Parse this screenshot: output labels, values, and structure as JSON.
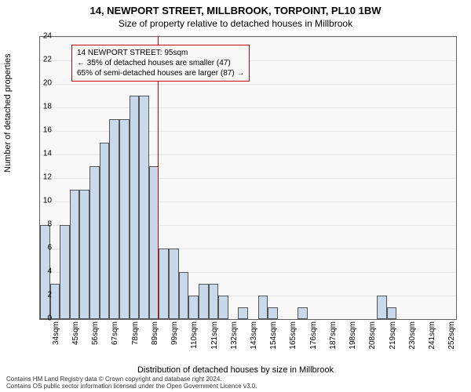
{
  "title_main": "14, NEWPORT STREET, MILLBROOK, TORPOINT, PL10 1BW",
  "title_sub": "Size of property relative to detached houses in Millbrook",
  "ylabel": "Number of detached properties",
  "xlabel": "Distribution of detached houses by size in Millbrook",
  "footer_line1": "Contains HM Land Registry data © Crown copyright and database right 2024.",
  "footer_line2": "Contains OS public sector information licensed under the Open Government Licence v3.0.",
  "callout": {
    "line1": "14 NEWPORT STREET: 95sqm",
    "line2": "← 35% of detached houses are smaller (47)",
    "line3": "65% of semi-detached houses are larger (87) →"
  },
  "chart": {
    "type": "histogram",
    "bar_fill": "#c9d9ec",
    "bar_border": "#555555",
    "plot_bg": "#f8f8f8",
    "grid_color": "rgba(0,0,0,0.07)",
    "refline_color": "#cc0000",
    "refline_x_sqm": 95,
    "x_min_sqm": 30,
    "x_max_sqm": 260,
    "ylim": [
      0,
      24
    ],
    "ytick_step": 2,
    "x_tick_labels": [
      "34sqm",
      "45sqm",
      "56sqm",
      "67sqm",
      "78sqm",
      "89sqm",
      "99sqm",
      "110sqm",
      "121sqm",
      "132sqm",
      "143sqm",
      "154sqm",
      "165sqm",
      "176sqm",
      "187sqm",
      "198sqm",
      "208sqm",
      "219sqm",
      "230sqm",
      "241sqm",
      "252sqm"
    ],
    "bars": [
      8,
      3,
      8,
      11,
      11,
      13,
      15,
      17,
      17,
      19,
      19,
      13,
      6,
      6,
      4,
      2,
      3,
      3,
      2,
      0,
      1,
      0,
      2,
      1,
      0,
      0,
      1,
      0,
      0,
      0,
      0,
      0,
      0,
      0,
      2,
      1,
      0,
      0,
      0,
      0,
      0,
      0
    ]
  }
}
